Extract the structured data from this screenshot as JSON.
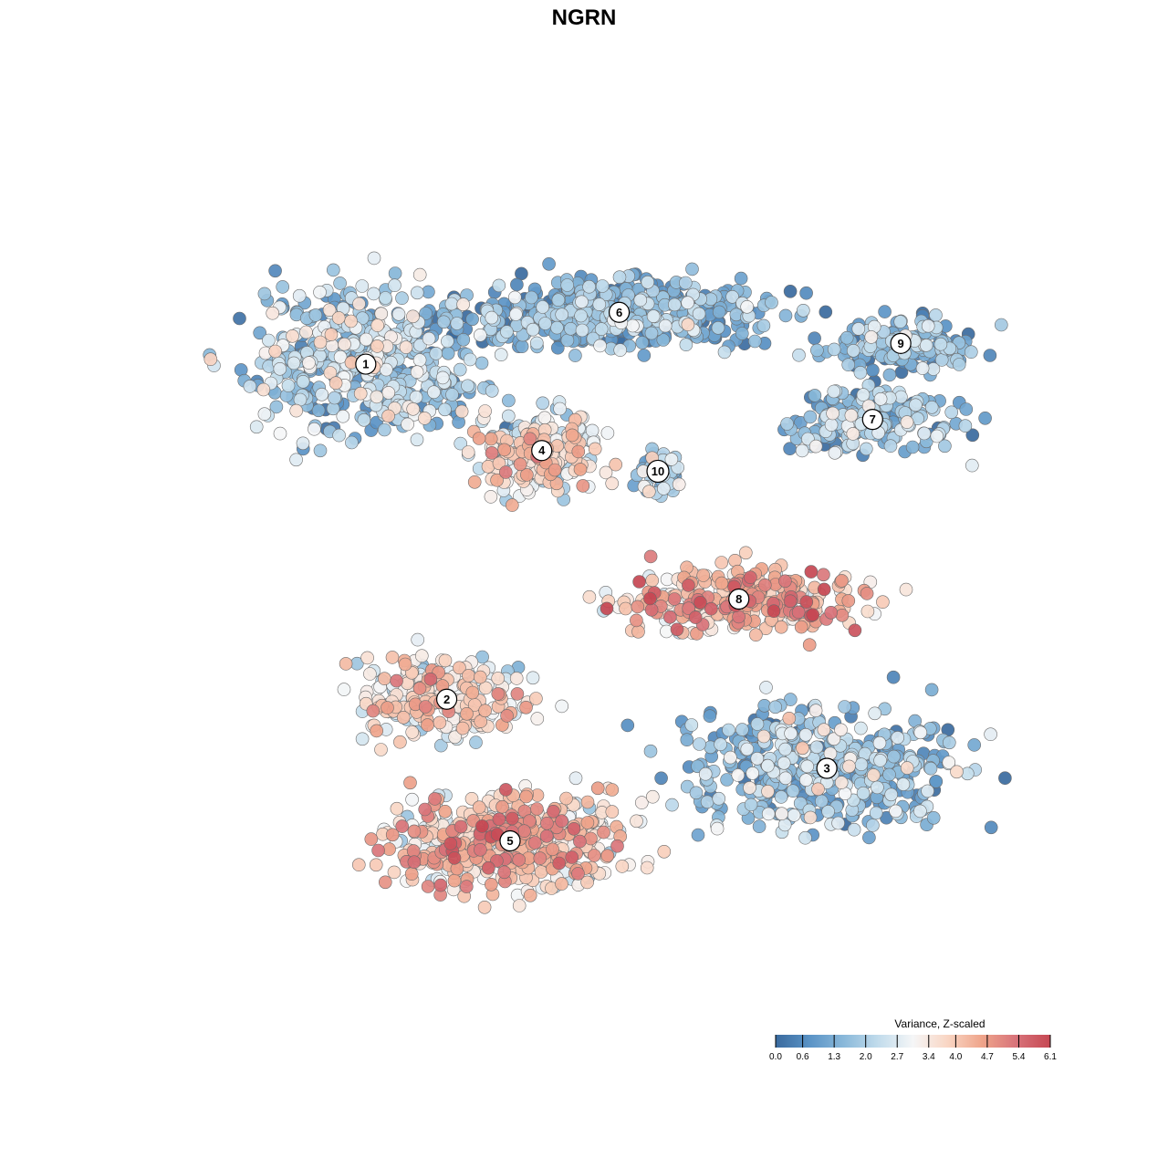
{
  "chart_data": {
    "type": "scatter",
    "title": "NGRN",
    "xlabel": "",
    "ylabel": "",
    "grid": false,
    "axes_visible": false,
    "legend": {
      "title": "Variance, Z-scaled",
      "placement": "bottom-right",
      "ticks": [
        "0.0",
        "0.6",
        "1.3",
        "2.0",
        "2.7",
        "3.4",
        "4.0",
        "4.7",
        "5.4",
        "6.1"
      ],
      "range": [
        0.0,
        6.1
      ],
      "colors": [
        "#3a6a9e",
        "#5a93c6",
        "#8ab9da",
        "#c2dcec",
        "#f5f6f7",
        "#f9d6c4",
        "#efa58b",
        "#d8737a",
        "#c64752"
      ]
    },
    "clusters": [
      {
        "label": "1",
        "x": -6.2,
        "y": 6.1,
        "mean": 1.9
      },
      {
        "label": "2",
        "x": -3.9,
        "y": -3.6,
        "mean": 3.3
      },
      {
        "label": "3",
        "x": 6.9,
        "y": -5.6,
        "mean": 1.6
      },
      {
        "label": "4",
        "x": -1.2,
        "y": 3.6,
        "mean": 3.0
      },
      {
        "label": "5",
        "x": -2.1,
        "y": -7.7,
        "mean": 3.8
      },
      {
        "label": "6",
        "x": 1.0,
        "y": 7.6,
        "mean": 1.2
      },
      {
        "label": "7",
        "x": 8.2,
        "y": 4.5,
        "mean": 1.5
      },
      {
        "label": "8",
        "x": 4.4,
        "y": -0.7,
        "mean": 4.2
      },
      {
        "label": "9",
        "x": 9.0,
        "y": 6.7,
        "mean": 1.4
      },
      {
        "label": "10",
        "x": 2.1,
        "y": 3.0,
        "mean": 1.6
      }
    ],
    "xlim": [
      -14,
      14
    ],
    "ylim": [
      -14,
      14
    ]
  }
}
